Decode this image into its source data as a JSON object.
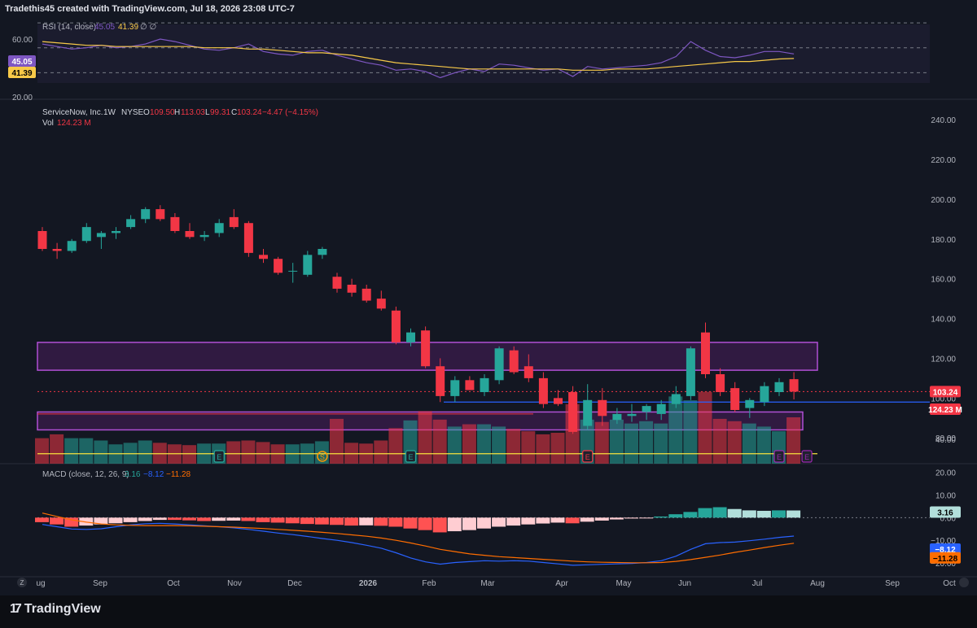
{
  "header": {
    "text": "Tradethis45 created with TradingView.com, Jul 18, 2026 23:08 UTC-7"
  },
  "rsi_pane": {
    "legend_title": "RSI (14, close)",
    "legend_v1": "45.05",
    "legend_v2": "41.39",
    "legend_tail": "∅ ∅",
    "axis_labels": [
      "60.00",
      "20.00"
    ],
    "badge_rsi": "45.05",
    "badge_ma": "41.39"
  },
  "main_pane": {
    "symbol_name": "ServiceNow, Inc.",
    "interval": "1W",
    "exchange": "NYSE",
    "ohlc": {
      "o": "109.50",
      "h": "113.03",
      "l": "99.31",
      "c": "103.24",
      "chg": "−4.47 (−4.15%)"
    },
    "vol_label": "Vol",
    "vol_value": "124.23 M",
    "axis_labels": [
      "240.00",
      "220.00",
      "200.00",
      "180.00",
      "160.00",
      "140.00",
      "120.00",
      "100.00",
      "80.00",
      "40.00"
    ],
    "price_badge": "103.24",
    "volume_badge": "124.23 M",
    "event_markers": [
      "E",
      "S",
      "E",
      "E",
      "E"
    ]
  },
  "macd_pane": {
    "legend_title": "MACD (close, 12, 26, 9)",
    "legend_v1": "3.16",
    "legend_v2": "−8.12",
    "legend_v3": "−11.28",
    "axis_labels": [
      "20.00",
      "10.00",
      "0.00",
      "−10.00",
      "−20.00"
    ],
    "badge_hist": "3.16",
    "badge_macd": "−8.12",
    "badge_signal": "−11.28"
  },
  "time_axis": [
    "ug",
    "Sep",
    "Oct",
    "Nov",
    "Dec",
    "2026",
    "Feb",
    "Mar",
    "Apr",
    "May",
    "Jun",
    "Jul",
    "Aug",
    "Sep",
    "Oct"
  ],
  "footer": {
    "logo_mark": "17",
    "logo_text": "TradingView"
  },
  "colors": {
    "up": "#26a69a",
    "down": "#f23645",
    "zone": "#9c27b0",
    "rsi": "#7e57c2",
    "rsi_ma": "#f7c948",
    "macd": "#2962ff",
    "signal": "#ff6d00",
    "bg": "#131722"
  },
  "chart_data": {
    "type": "candlestick",
    "symbol": "ServiceNow, Inc.",
    "interval": "1W",
    "x_unit": "week",
    "x_range": [
      "2025-08",
      "2026-10"
    ],
    "price_range": [
      67,
      247
    ],
    "candles": [
      {
        "o": 184,
        "h": 186,
        "l": 174,
        "c": 175
      },
      {
        "o": 175,
        "h": 178,
        "l": 170,
        "c": 174
      },
      {
        "o": 174,
        "h": 180,
        "l": 173,
        "c": 179
      },
      {
        "o": 179,
        "h": 188,
        "l": 178,
        "c": 186
      },
      {
        "o": 181,
        "h": 184,
        "l": 175,
        "c": 183
      },
      {
        "o": 183,
        "h": 186,
        "l": 180,
        "c": 184
      },
      {
        "o": 186,
        "h": 192,
        "l": 185,
        "c": 190
      },
      {
        "o": 190,
        "h": 196,
        "l": 188,
        "c": 195
      },
      {
        "o": 195,
        "h": 197,
        "l": 189,
        "c": 190
      },
      {
        "o": 191,
        "h": 193,
        "l": 183,
        "c": 184
      },
      {
        "o": 184,
        "h": 188,
        "l": 180,
        "c": 181
      },
      {
        "o": 181,
        "h": 184,
        "l": 179,
        "c": 182
      },
      {
        "o": 183,
        "h": 190,
        "l": 181,
        "c": 188
      },
      {
        "o": 191,
        "h": 195,
        "l": 185,
        "c": 186
      },
      {
        "o": 188,
        "h": 189,
        "l": 171,
        "c": 173
      },
      {
        "o": 172,
        "h": 175,
        "l": 168,
        "c": 170
      },
      {
        "o": 170,
        "h": 171,
        "l": 162,
        "c": 163
      },
      {
        "o": 164,
        "h": 168,
        "l": 158,
        "c": 164
      },
      {
        "o": 162,
        "h": 174,
        "l": 161,
        "c": 172
      },
      {
        "o": 172,
        "h": 176,
        "l": 170,
        "c": 175
      },
      {
        "o": 161,
        "h": 163,
        "l": 153,
        "c": 155
      },
      {
        "o": 157,
        "h": 160,
        "l": 151,
        "c": 153
      },
      {
        "o": 155,
        "h": 157,
        "l": 148,
        "c": 149
      },
      {
        "o": 150,
        "h": 154,
        "l": 144,
        "c": 145
      },
      {
        "o": 144,
        "h": 146,
        "l": 127,
        "c": 128
      },
      {
        "o": 128,
        "h": 135,
        "l": 126,
        "c": 133
      },
      {
        "o": 134,
        "h": 136,
        "l": 115,
        "c": 116
      },
      {
        "o": 116,
        "h": 120,
        "l": 98,
        "c": 101
      },
      {
        "o": 101,
        "h": 111,
        "l": 98,
        "c": 109
      },
      {
        "o": 109,
        "h": 111,
        "l": 104,
        "c": 104
      },
      {
        "o": 103,
        "h": 112,
        "l": 101,
        "c": 110
      },
      {
        "o": 109,
        "h": 126,
        "l": 107,
        "c": 125
      },
      {
        "o": 124,
        "h": 126,
        "l": 112,
        "c": 113
      },
      {
        "o": 116,
        "h": 122,
        "l": 108,
        "c": 110
      },
      {
        "o": 110,
        "h": 113,
        "l": 95,
        "c": 97
      },
      {
        "o": 100,
        "h": 104,
        "l": 96,
        "c": 97
      },
      {
        "o": 103,
        "h": 106,
        "l": 82,
        "c": 83
      },
      {
        "o": 86,
        "h": 107,
        "l": 84,
        "c": 99
      },
      {
        "o": 99,
        "h": 105,
        "l": 86,
        "c": 91
      },
      {
        "o": 89,
        "h": 95,
        "l": 87,
        "c": 92
      },
      {
        "o": 91,
        "h": 97,
        "l": 88,
        "c": 92
      },
      {
        "o": 93,
        "h": 97,
        "l": 89,
        "c": 96
      },
      {
        "o": 92,
        "h": 99,
        "l": 89,
        "c": 97
      },
      {
        "o": 97,
        "h": 106,
        "l": 95,
        "c": 102
      },
      {
        "o": 101,
        "h": 126,
        "l": 99,
        "c": 125
      },
      {
        "o": 133,
        "h": 138,
        "l": 110,
        "c": 112
      },
      {
        "o": 112,
        "h": 115,
        "l": 101,
        "c": 103
      },
      {
        "o": 105,
        "h": 108,
        "l": 93,
        "c": 94
      },
      {
        "o": 95,
        "h": 100,
        "l": 90,
        "c": 99
      },
      {
        "o": 98,
        "h": 108,
        "l": 96,
        "c": 106
      },
      {
        "o": 103,
        "h": 110,
        "l": 101,
        "c": 108
      },
      {
        "o": 109.5,
        "h": 113.03,
        "l": 99.31,
        "c": 103.24
      }
    ],
    "volume_m": [
      33,
      38,
      33,
      33,
      30,
      25,
      27,
      30,
      27,
      25,
      24,
      26,
      26,
      29,
      30,
      28,
      25,
      25,
      26,
      29,
      58,
      27,
      26,
      30,
      46,
      56,
      68,
      57,
      48,
      51,
      51,
      48,
      45,
      42,
      38,
      40,
      77,
      57,
      54,
      57,
      52,
      55,
      52,
      87,
      82,
      93,
      58,
      55,
      52,
      48,
      42,
      60
    ],
    "zones": [
      {
        "from": 114,
        "to": 128
      },
      {
        "from": 84,
        "to": 93
      }
    ],
    "lines": [
      {
        "price": 98,
        "color": "#2962ff"
      },
      {
        "price": 72,
        "color": "#f7e23c"
      },
      {
        "price": 92,
        "color": "#f23645"
      }
    ],
    "rsi": {
      "range": [
        12,
        72
      ],
      "levels": [
        70,
        50,
        30
      ],
      "rsi": [
        53,
        51,
        49,
        50,
        52,
        50,
        51,
        53,
        57,
        55,
        52,
        49,
        48,
        50,
        53,
        47,
        45,
        44,
        47,
        48,
        44,
        41,
        38,
        36,
        32,
        33,
        31,
        26,
        30,
        33,
        31,
        37,
        36,
        34,
        32,
        33,
        27,
        35,
        33,
        34,
        35,
        36,
        38,
        43,
        55,
        48,
        43,
        42,
        44,
        47,
        47,
        45.05
      ],
      "rsi_ma": [
        55,
        54,
        53,
        52,
        52,
        51,
        51,
        51,
        51,
        51,
        51,
        50,
        50,
        50,
        49,
        49,
        48,
        47,
        46,
        46,
        45,
        44,
        42,
        40,
        38,
        37,
        36,
        35,
        34,
        33,
        33,
        33,
        33,
        33,
        33,
        33,
        32,
        32,
        32,
        33,
        33,
        33,
        34,
        35,
        36,
        37,
        38,
        39,
        39,
        40,
        41,
        41.39
      ]
    },
    "macd": {
      "range": [
        -25,
        22
      ],
      "histogram": [
        -2,
        -3,
        -4,
        -3.5,
        -3,
        -2.5,
        -2,
        -1.5,
        -1,
        -1,
        -1.2,
        -1.5,
        -1.4,
        -1.3,
        -1.5,
        -2,
        -2.2,
        -2.5,
        -2.8,
        -3,
        -3.2,
        -3.5,
        -3.4,
        -3.6,
        -4,
        -4.8,
        -5.5,
        -6.5,
        -6,
        -5.5,
        -4.8,
        -4,
        -3.5,
        -3,
        -2.6,
        -2.2,
        -2.5,
        -1.8,
        -1.3,
        -0.8,
        -0.4,
        -0.2,
        0.5,
        1.5,
        2.5,
        4.2,
        4.6,
        3.8,
        3.2,
        3,
        3.2,
        3.16
      ],
      "macd_line": [
        -3,
        -4,
        -5,
        -5.2,
        -4.9,
        -4,
        -3.2,
        -2.7,
        -2.5,
        -2.8,
        -3.2,
        -3.6,
        -4,
        -4.5,
        -5.2,
        -6,
        -6.8,
        -7.5,
        -8.3,
        -9.2,
        -10,
        -11,
        -12.2,
        -13.5,
        -15.5,
        -17.8,
        -19.5,
        -20.5,
        -19.8,
        -19.4,
        -19,
        -19.2,
        -19,
        -19.2,
        -19.8,
        -20.4,
        -21,
        -20.8,
        -20.6,
        -20.4,
        -20.2,
        -19.8,
        -19,
        -17,
        -14,
        -11.5,
        -11,
        -10.8,
        -10.2,
        -9.5,
        -8.7,
        -8.12
      ],
      "signal_line": [
        2,
        0.5,
        -1,
        -2,
        -2.8,
        -3.2,
        -3.4,
        -3.5,
        -3.5,
        -3.5,
        -3.6,
        -3.8,
        -4,
        -4.2,
        -4.5,
        -4.8,
        -5.2,
        -5.6,
        -6,
        -6.5,
        -7,
        -7.6,
        -8.2,
        -9,
        -10,
        -11.2,
        -12.5,
        -14,
        -15,
        -16,
        -16.6,
        -17.2,
        -17.6,
        -18,
        -18.4,
        -18.8,
        -19.2,
        -19.5,
        -19.7,
        -19.8,
        -19.9,
        -19.9,
        -19.8,
        -19.3,
        -18.5,
        -17.5,
        -16.5,
        -15.3,
        -14.3,
        -13.2,
        -12.2,
        -11.28
      ]
    }
  }
}
